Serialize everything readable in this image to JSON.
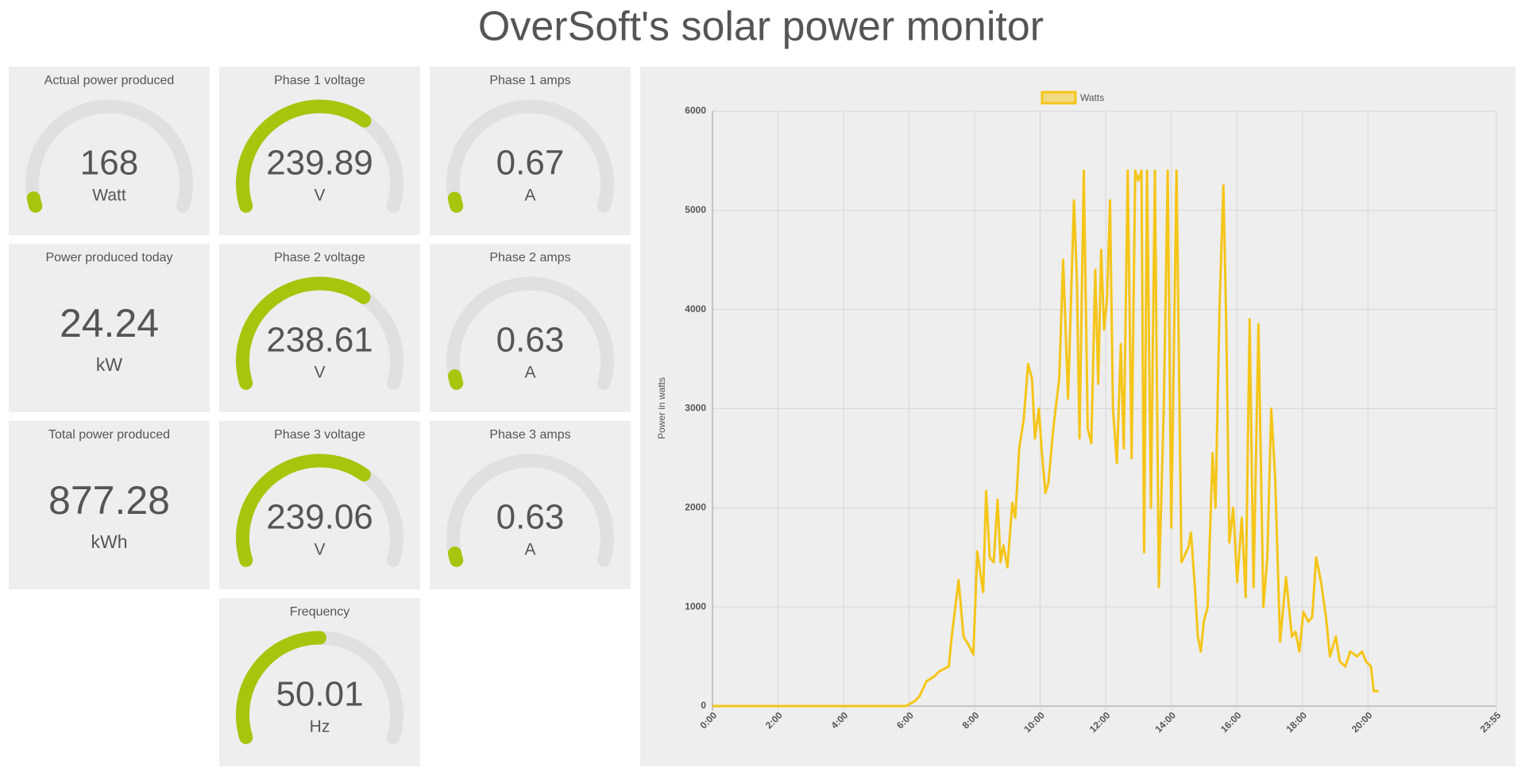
{
  "header": {
    "title": "OverSoft's solar power monitor"
  },
  "tiles": [
    {
      "label": "Actual power produced",
      "value": 168,
      "unit": "Watt",
      "gauge": {
        "min": 0,
        "max": 6000
      }
    },
    {
      "label": "Phase 1 voltage",
      "value": 239.89,
      "unit": "V",
      "gauge": {
        "min": 0,
        "max": 360
      }
    },
    {
      "label": "Phase 1 amps",
      "value": 0.67,
      "unit": "A",
      "gauge": {
        "min": 0,
        "max": 25
      }
    },
    {
      "label": "Power produced today",
      "value": 24.24,
      "unit": "kW"
    },
    {
      "label": "Phase 2 voltage",
      "value": 238.61,
      "unit": "V",
      "gauge": {
        "min": 0,
        "max": 360
      }
    },
    {
      "label": "Phase 2 amps",
      "value": 0.63,
      "unit": "A",
      "gauge": {
        "min": 0,
        "max": 25
      }
    },
    {
      "label": "Total power produced",
      "value": 877.28,
      "unit": "kWh"
    },
    {
      "label": "Phase 3 voltage",
      "value": 239.06,
      "unit": "V",
      "gauge": {
        "min": 0,
        "max": 360
      }
    },
    {
      "label": "Phase 3 amps",
      "value": 0.63,
      "unit": "A",
      "gauge": {
        "min": 0,
        "max": 25
      }
    },
    {
      "label": "Frequency",
      "value": 50.01,
      "unit": "Hz",
      "gauge": {
        "min": 0,
        "max": 100
      }
    }
  ],
  "chart_data": {
    "type": "line",
    "y_label": "Power in watts",
    "x": [
      0,
      5.9,
      6.17,
      6.32,
      6.53,
      6.77,
      6.92,
      7.21,
      7.3,
      7.51,
      7.66,
      7.81,
      7.96,
      8.08,
      8.26,
      8.35,
      8.46,
      8.58,
      8.7,
      8.79,
      8.88,
      9.0,
      9.15,
      9.24,
      9.36,
      9.5,
      9.63,
      9.75,
      9.84,
      9.96,
      10.04,
      10.16,
      10.25,
      10.4,
      10.58,
      10.7,
      10.85,
      11.03,
      11.12,
      11.2,
      11.33,
      11.45,
      11.56,
      11.68,
      11.77,
      11.86,
      11.95,
      12.04,
      12.13,
      12.22,
      12.34,
      12.46,
      12.55,
      12.67,
      12.79,
      12.9,
      12.99,
      13.09,
      13.17,
      13.26,
      13.38,
      13.5,
      13.62,
      13.77,
      13.89,
      14.0,
      14.16,
      14.31,
      14.52,
      14.6,
      14.72,
      14.81,
      14.9,
      14.99,
      15.11,
      15.26,
      15.35,
      15.47,
      15.59,
      15.68,
      15.77,
      15.89,
      16.01,
      16.15,
      16.27,
      16.39,
      16.51,
      16.66,
      16.81,
      16.93,
      17.05,
      17.17,
      17.32,
      17.5,
      17.68,
      17.79,
      17.91,
      18.03,
      18.18,
      18.3,
      18.42,
      18.57,
      18.72,
      18.84,
      19.02,
      19.14,
      19.31,
      19.46,
      19.67,
      19.82,
      19.94,
      20.09,
      20.18,
      20.33
    ],
    "series": [
      {
        "name": "Watts",
        "color": "#f5c518",
        "values": [
          0,
          0,
          50,
          100,
          250,
          300,
          350,
          400,
          700,
          1270,
          700,
          620,
          520,
          1560,
          1150,
          2170,
          1500,
          1450,
          2080,
          1450,
          1620,
          1400,
          2050,
          1900,
          2600,
          2900,
          3450,
          3300,
          2700,
          3000,
          2600,
          2150,
          2250,
          2800,
          3300,
          4500,
          3100,
          5100,
          4300,
          2700,
          5400,
          2800,
          2650,
          4400,
          3250,
          4600,
          3800,
          4100,
          5100,
          3000,
          2450,
          3650,
          2600,
          5400,
          2500,
          5400,
          5300,
          5400,
          1550,
          5400,
          2000,
          5400,
          1200,
          3000,
          5400,
          1800,
          5400,
          1450,
          1600,
          1750,
          1200,
          700,
          550,
          850,
          1000,
          2550,
          2000,
          4000,
          5250,
          3800,
          1650,
          2000,
          1250,
          1900,
          1100,
          3900,
          1200,
          3850,
          1000,
          1500,
          3000,
          2300,
          650,
          1300,
          700,
          750,
          550,
          950,
          850,
          900,
          1500,
          1250,
          900,
          500,
          700,
          450,
          400,
          550,
          500,
          550,
          450,
          400,
          150,
          150
        ]
      }
    ],
    "xlim": [
      0,
      23.92
    ],
    "xticks": [
      {
        "value": 0,
        "label": "0:00"
      },
      {
        "value": 2,
        "label": "2:00"
      },
      {
        "value": 4,
        "label": "4:00"
      },
      {
        "value": 6,
        "label": "6:00"
      },
      {
        "value": 8,
        "label": "8:00"
      },
      {
        "value": 10,
        "label": "10:00"
      },
      {
        "value": 12,
        "label": "12:00"
      },
      {
        "value": 14,
        "label": "14:00"
      },
      {
        "value": 16,
        "label": "16:00"
      },
      {
        "value": 18,
        "label": "18:00"
      },
      {
        "value": 20,
        "label": "20:00"
      },
      {
        "value": 23.92,
        "label": "23:55"
      }
    ],
    "ylim": [
      0,
      6000
    ],
    "yticks": [
      0,
      1000,
      2000,
      3000,
      4000,
      5000,
      6000
    ],
    "grid": true,
    "legend": "top"
  }
}
